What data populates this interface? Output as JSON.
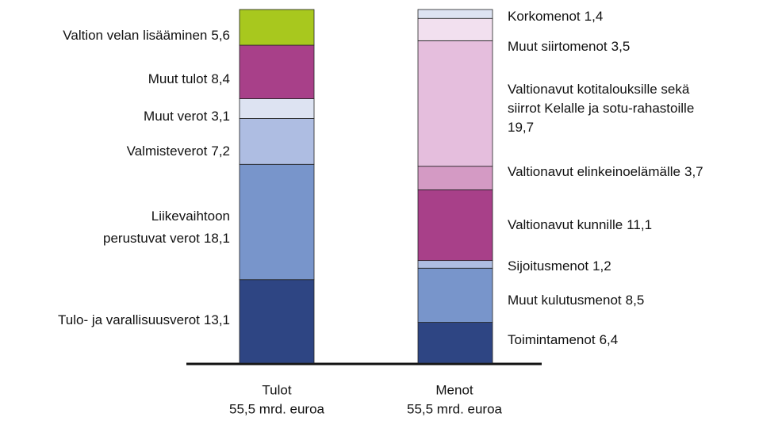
{
  "chart_data": {
    "type": "stacked_bar",
    "categories": [
      "Tulot",
      "Menot"
    ],
    "category_totals": [
      "55,5 mrd. euroa",
      "55,5 mrd. euroa"
    ],
    "bars": [
      {
        "segments": [
          {
            "name": [
              "Tulo- ja varallisuusverot"
            ],
            "value": 13.1,
            "value_label": "13,1",
            "color": "#2e4583"
          },
          {
            "name": [
              "Liikevaihtoon",
              "perustuvat verot"
            ],
            "value": 18.1,
            "value_label": "18,1",
            "color": "#7895cb"
          },
          {
            "name": [
              "Valmisteverot"
            ],
            "value": 7.2,
            "value_label": "7,2",
            "color": "#aebde2"
          },
          {
            "name": [
              "Muut verot"
            ],
            "value": 3.1,
            "value_label": "3,1",
            "color": "#dde3f2"
          },
          {
            "name": [
              "Muut tulot"
            ],
            "value": 8.4,
            "value_label": "8,4",
            "color": "#a84089"
          },
          {
            "name": [
              "Valtion velan lisääminen"
            ],
            "value": 5.6,
            "value_label": "5,6",
            "color": "#a8c81e"
          }
        ]
      },
      {
        "segments": [
          {
            "name": [
              "Toimintamenot"
            ],
            "value": 6.4,
            "value_label": "6,4",
            "color": "#2e4583"
          },
          {
            "name": [
              "Muut kulutusmenot"
            ],
            "value": 8.5,
            "value_label": "8,5",
            "color": "#7895cb"
          },
          {
            "name": [
              "Sijoitusmenot"
            ],
            "value": 1.2,
            "value_label": "1,2",
            "color": "#aebde2"
          },
          {
            "name": [
              "Valtionavut kunnille"
            ],
            "value": 11.1,
            "value_label": "11,1",
            "color": "#a84089"
          },
          {
            "name": [
              "Valtionavut elinkeinoelämälle"
            ],
            "value": 3.7,
            "value_label": "3,7",
            "color": "#d49ac4"
          },
          {
            "name": [
              "Valtionavut kotitalouksille sekä",
              "siirrot Kelalle ja sotu-rahastoille"
            ],
            "value": 19.7,
            "value_label": "19,7",
            "color": "#e5bedd"
          },
          {
            "name": [
              "Muut siirtomenot"
            ],
            "value": 3.5,
            "value_label": "3,5",
            "color": "#f2e0ef"
          },
          {
            "name": [
              "Korkomenot"
            ],
            "value": 1.4,
            "value_label": "1,4",
            "color": "#dde3f2"
          }
        ]
      }
    ]
  }
}
